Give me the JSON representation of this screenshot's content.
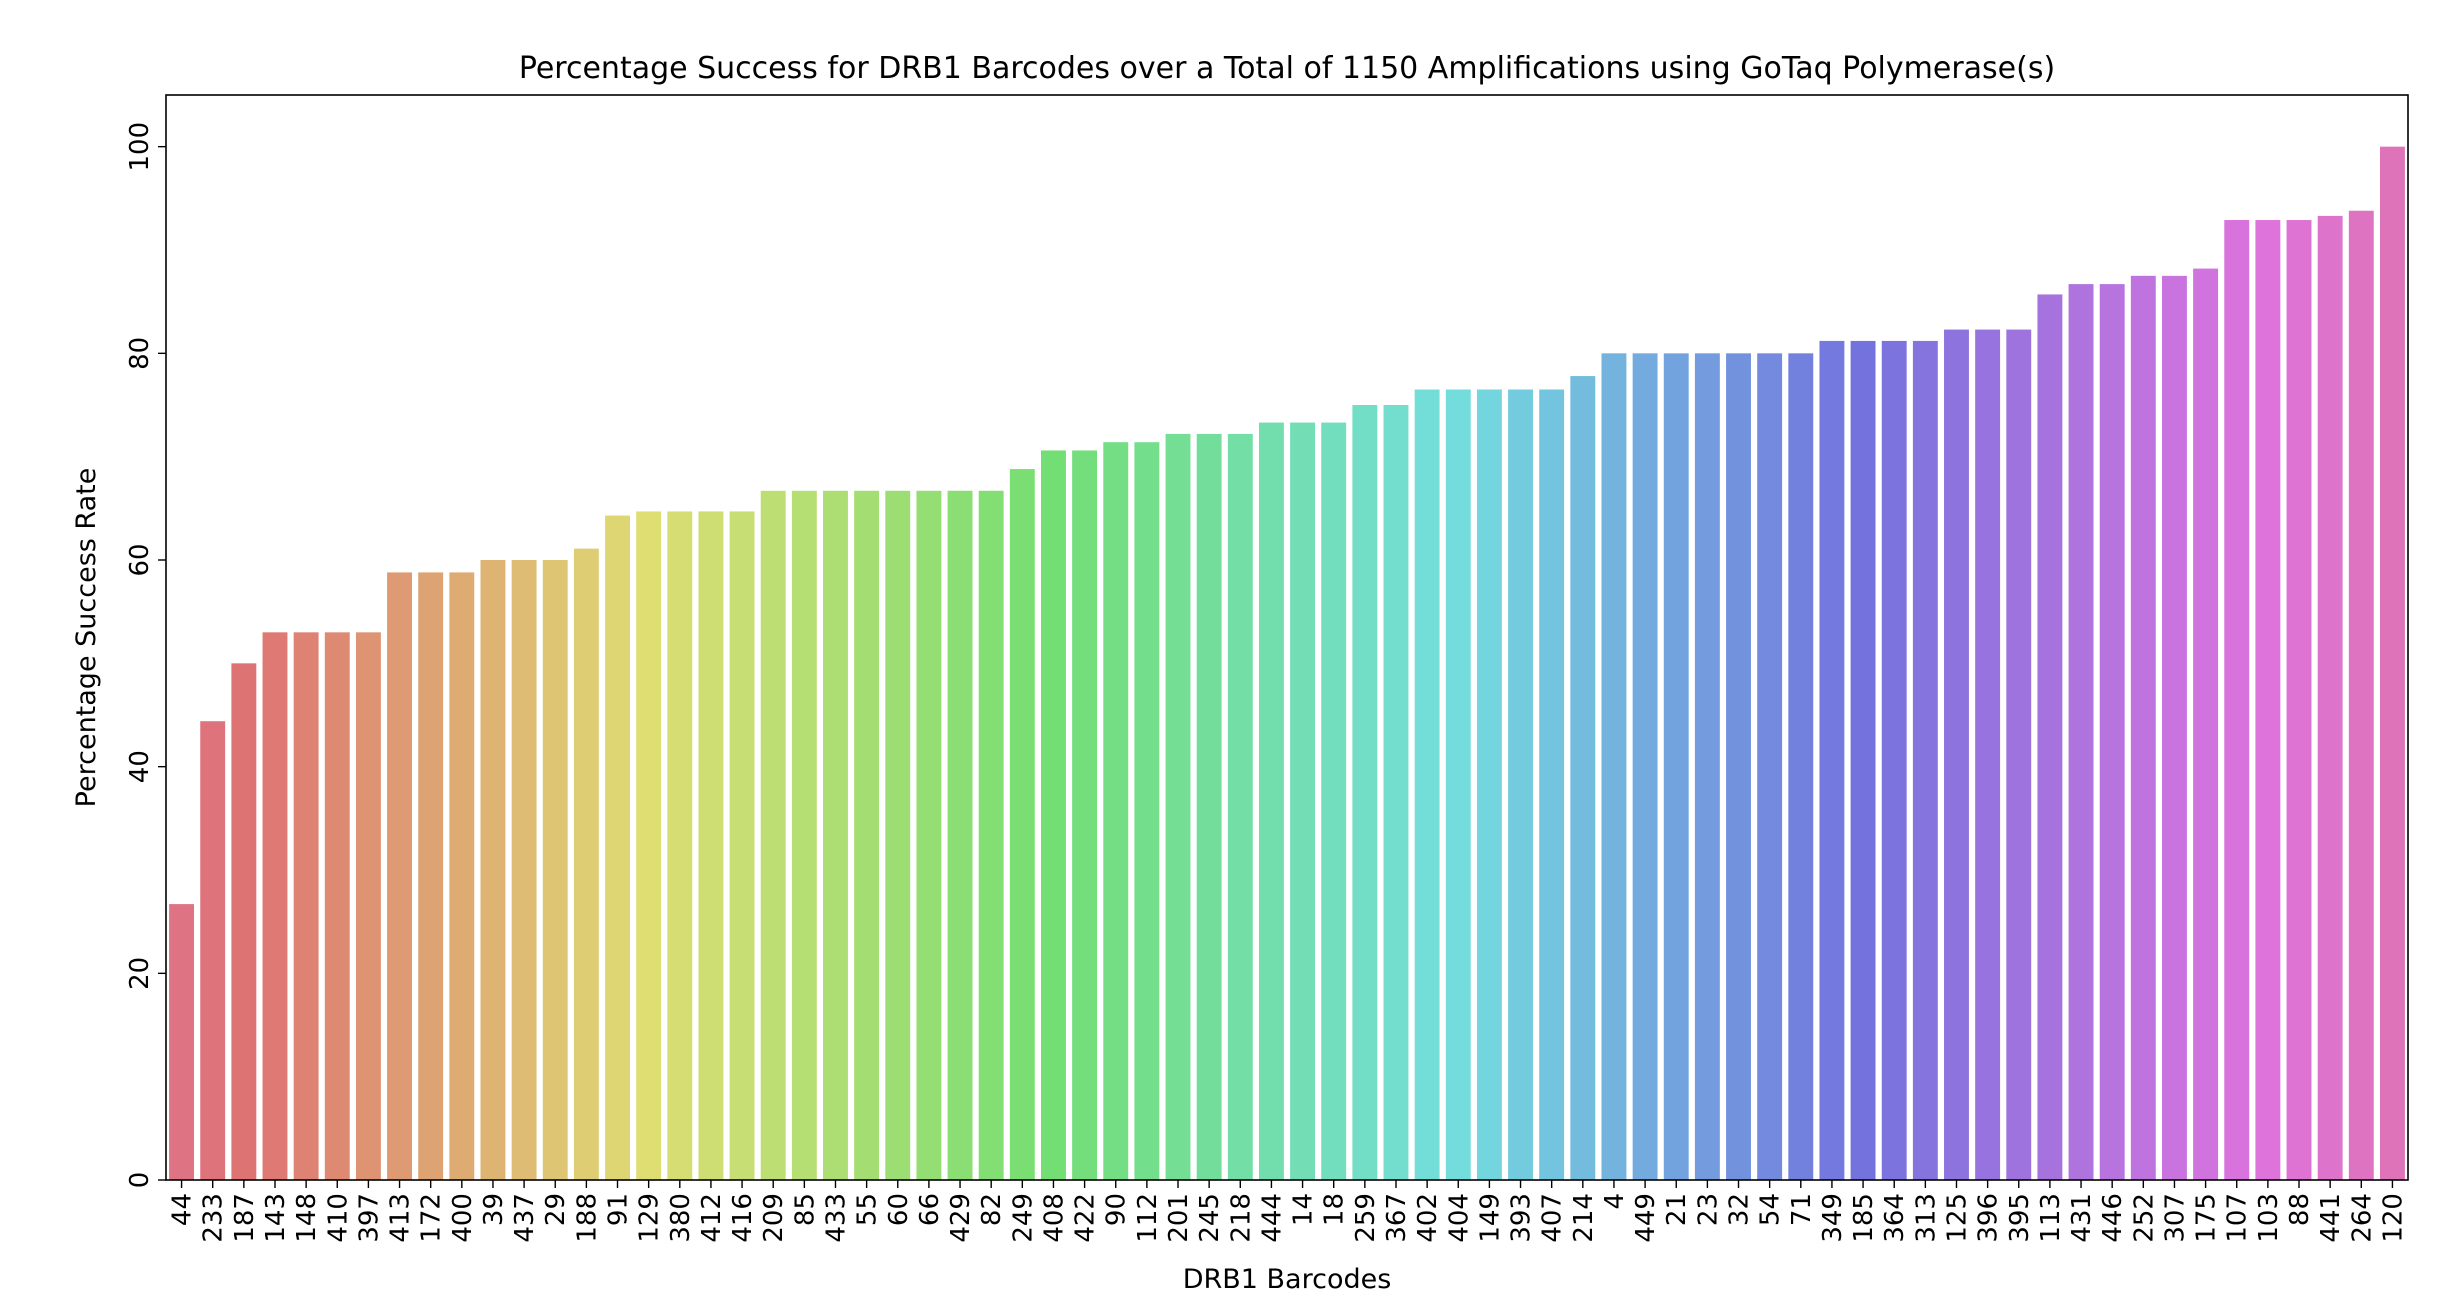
{
  "chart_data": {
    "type": "bar",
    "title": "Percentage Success for DRB1 Barcodes over a Total of 1150 Amplifications using GoTaq Polymerase(s)",
    "xlabel": "DRB1 Barcodes",
    "ylabel": "Percentage Success Rate",
    "ylim": [
      0,
      105
    ],
    "yticks": [
      0,
      20,
      40,
      60,
      80,
      100
    ],
    "grid": false,
    "legend": "none",
    "categories": [
      "44",
      "233",
      "187",
      "143",
      "148",
      "410",
      "397",
      "413",
      "172",
      "400",
      "39",
      "437",
      "29",
      "188",
      "91",
      "129",
      "380",
      "412",
      "416",
      "209",
      "85",
      "433",
      "55",
      "60",
      "66",
      "429",
      "82",
      "249",
      "408",
      "422",
      "90",
      "112",
      "201",
      "245",
      "218",
      "444",
      "14",
      "18",
      "259",
      "367",
      "402",
      "404",
      "149",
      "393",
      "407",
      "214",
      "4",
      "449",
      "21",
      "23",
      "32",
      "54",
      "71",
      "349",
      "185",
      "364",
      "313",
      "125",
      "396",
      "395",
      "113",
      "431",
      "446",
      "252",
      "307",
      "175",
      "107",
      "103",
      "88",
      "441",
      "264",
      "120"
    ],
    "values": [
      26.7,
      44.4,
      50.0,
      53.0,
      53.0,
      53.0,
      53.0,
      58.8,
      58.8,
      58.8,
      60.0,
      60.0,
      60.0,
      61.1,
      64.3,
      64.7,
      64.7,
      64.7,
      64.7,
      66.7,
      66.7,
      66.7,
      66.7,
      66.7,
      66.7,
      66.7,
      66.7,
      68.8,
      70.6,
      70.6,
      71.4,
      71.4,
      72.2,
      72.2,
      72.2,
      73.3,
      73.3,
      73.3,
      75.0,
      75.0,
      76.5,
      76.5,
      76.5,
      76.5,
      76.5,
      77.8,
      80.0,
      80.0,
      80.0,
      80.0,
      80.0,
      80.0,
      80.0,
      81.2,
      81.2,
      81.2,
      81.2,
      82.3,
      82.3,
      82.3,
      85.7,
      86.7,
      86.7,
      87.5,
      87.5,
      88.2,
      92.9,
      92.9,
      92.9,
      93.3,
      93.8,
      100.0
    ]
  }
}
